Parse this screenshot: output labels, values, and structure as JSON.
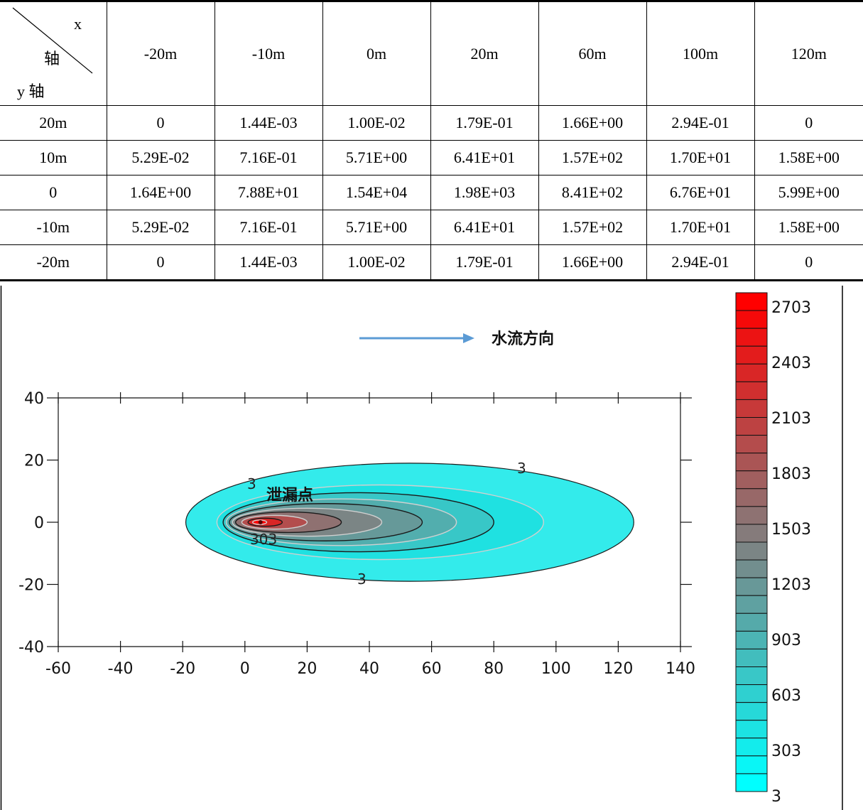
{
  "table": {
    "corner": {
      "x_label": "x",
      "x_axis": "轴",
      "y_label": "y 轴"
    },
    "columns": [
      "-20m",
      "-10m",
      "0m",
      "20m",
      "60m",
      "100m",
      "120m"
    ],
    "rows": [
      {
        "label": "20m",
        "cells": [
          "0",
          "1.44E-03",
          "1.00E-02",
          "1.79E-01",
          "1.66E+00",
          "2.94E-01",
          "0"
        ]
      },
      {
        "label": "10m",
        "cells": [
          "5.29E-02",
          "7.16E-01",
          "5.71E+00",
          "6.41E+01",
          "1.57E+02",
          "1.70E+01",
          "1.58E+00"
        ]
      },
      {
        "label": "0",
        "cells": [
          "1.64E+00",
          "7.88E+01",
          "1.54E+04",
          "1.98E+03",
          "8.41E+02",
          "6.76E+01",
          "5.99E+00"
        ]
      },
      {
        "label": "-10m",
        "cells": [
          "5.29E-02",
          "7.16E-01",
          "5.71E+00",
          "6.41E+01",
          "1.57E+02",
          "1.70E+01",
          "1.58E+00"
        ]
      },
      {
        "label": "-20m",
        "cells": [
          "0",
          "1.44E-03",
          "1.00E-02",
          "1.79E-01",
          "1.66E+00",
          "2.94E-01",
          "0"
        ]
      }
    ]
  },
  "chart_data": {
    "type": "contour",
    "xlim": [
      -60,
      140
    ],
    "ylim": [
      -40,
      40
    ],
    "x_ticks": [
      "-60",
      "-40",
      "-20",
      "0",
      "20",
      "40",
      "60",
      "80",
      "100",
      "120",
      "140"
    ],
    "y_ticks": [
      "40",
      "20",
      "0",
      "-20",
      "-40"
    ],
    "flow_label": "水流方向",
    "leak_label": "泄漏点",
    "contour_labels": [
      "3",
      "3",
      "3",
      "303"
    ],
    "source_point": {
      "x": 5,
      "y": 0
    },
    "colorbar": {
      "labels": [
        "2703",
        "2403",
        "2103",
        "1803",
        "1503",
        "1203",
        "903",
        "603",
        "303",
        "3"
      ],
      "min": 3,
      "max": 2703,
      "levels": 28,
      "color_low": "#00ffff",
      "color_mid": "#808080",
      "color_high": "#ff0000"
    },
    "plume_fill_color": "#33ebeb",
    "arrow_color": "#5b9bd5"
  }
}
